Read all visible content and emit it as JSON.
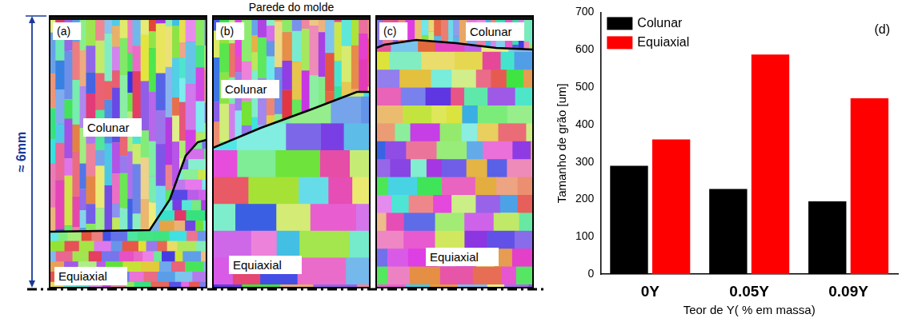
{
  "figure": {
    "mold_wall_label": "Parede do molde",
    "scale_label": "≈ 6mm",
    "panels": [
      {
        "letter": "(a)",
        "columnar_label": "Colunar",
        "equiaxed_label": "Equiaxial"
      },
      {
        "letter": "(b)",
        "columnar_label": "Colunar",
        "equiaxed_label": "Equiaxial"
      },
      {
        "letter": "(c)",
        "columnar_label": "Colunar",
        "equiaxed_label": "Equiaxial"
      }
    ]
  },
  "chart_data": {
    "type": "bar",
    "annotations": [
      "(d)"
    ],
    "categories": [
      "0Y",
      "0.05Y",
      "0.09Y"
    ],
    "x_label": "Teor de Y( % em massa)",
    "y_label": "Tamanho de grão [um]",
    "series": [
      {
        "name": "Colunar",
        "color": "#000000",
        "values": [
          290,
          228,
          195
        ]
      },
      {
        "name": "Equiaxial",
        "color": "#ff0000",
        "values": [
          360,
          587,
          470
        ]
      }
    ],
    "ylim": [
      0,
      700
    ],
    "yticks": [
      0,
      100,
      200,
      300,
      400,
      500,
      600,
      700
    ],
    "grid": false,
    "legend": "top-left"
  }
}
